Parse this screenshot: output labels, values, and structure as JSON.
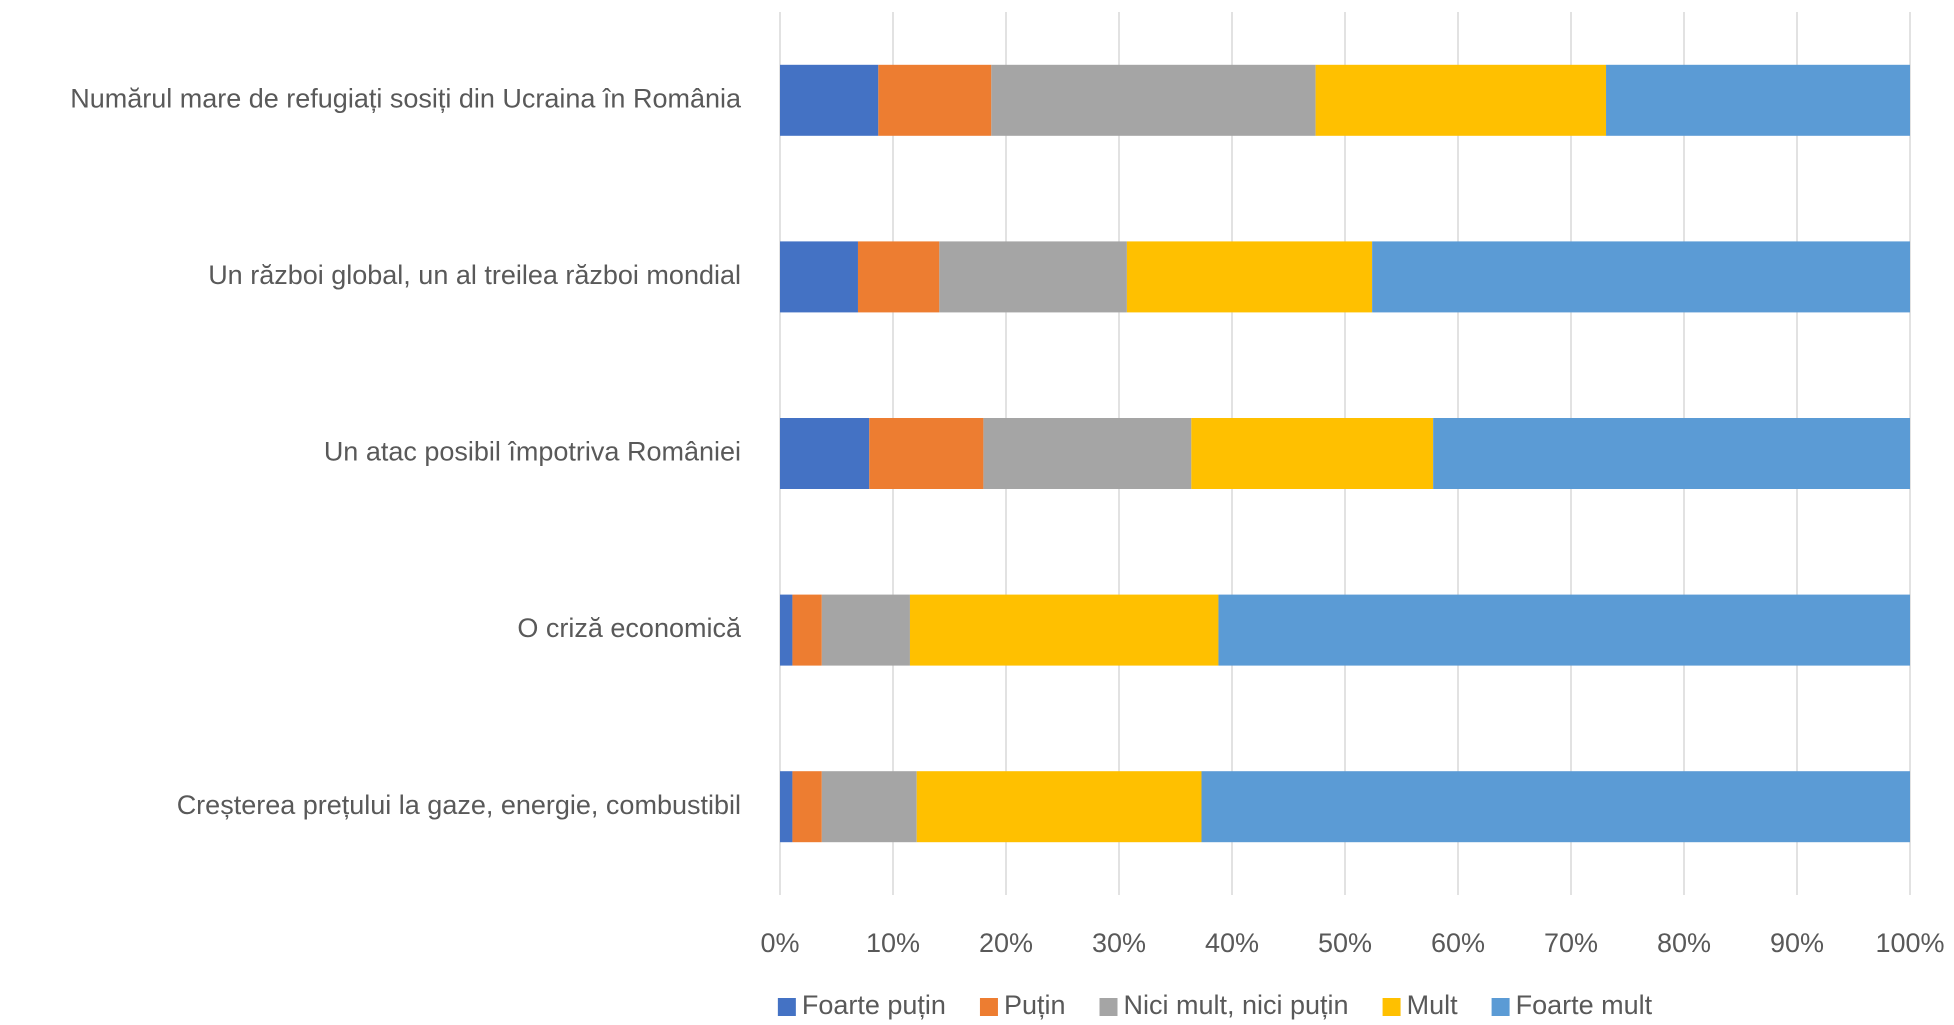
{
  "chart_data": {
    "type": "bar",
    "orientation": "horizontal",
    "stacked": true,
    "categories": [
      "Numărul mare de refugiați sosiți din Ucraina în România",
      "Un război global, un al treilea război mondial",
      "Un atac posibil împotriva României",
      "O criză economică",
      "Creșterea prețului la gaze, energie, combustibil"
    ],
    "series": [
      {
        "name": "Foarte puțin",
        "color": "#4472c4",
        "values": [
          8.7,
          6.9,
          7.9,
          1.1,
          1.1
        ]
      },
      {
        "name": "Puțin",
        "color": "#ed7d31",
        "values": [
          10.0,
          7.2,
          10.1,
          2.6,
          2.6
        ]
      },
      {
        "name": "Nici mult, nici puțin",
        "color": "#a5a5a5",
        "values": [
          28.7,
          16.6,
          18.4,
          7.8,
          8.4
        ]
      },
      {
        "name": "Mult",
        "color": "#ffc000",
        "values": [
          25.7,
          21.7,
          21.4,
          27.3,
          25.2
        ]
      },
      {
        "name": "Foarte mult",
        "color": "#5b9bd5",
        "values": [
          26.9,
          47.6,
          42.2,
          61.2,
          62.7
        ]
      }
    ],
    "xlim": [
      0,
      100
    ],
    "xticks": [
      {
        "value": 0,
        "label": "0%"
      },
      {
        "value": 10,
        "label": "10%"
      },
      {
        "value": 20,
        "label": "20%"
      },
      {
        "value": 30,
        "label": "30%"
      },
      {
        "value": 40,
        "label": "40%"
      },
      {
        "value": 50,
        "label": "50%"
      },
      {
        "value": 60,
        "label": "60%"
      },
      {
        "value": 70,
        "label": "70%"
      },
      {
        "value": 80,
        "label": "80%"
      },
      {
        "value": 90,
        "label": "90%"
      },
      {
        "value": 100,
        "label": "100%"
      }
    ],
    "grid": true,
    "legend": "bottom"
  }
}
